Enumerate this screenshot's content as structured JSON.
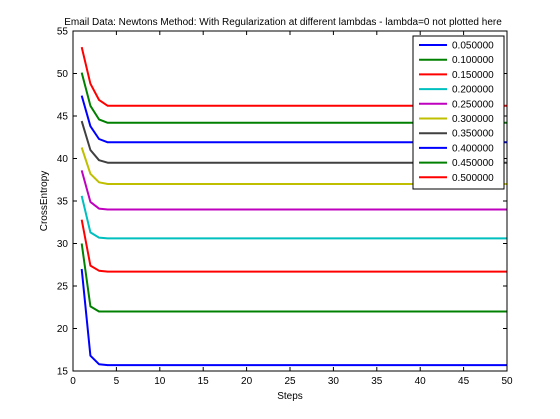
{
  "chart_data": {
    "type": "line",
    "title": "Email Data: Newtons Method: With Regularization at different lambdas - lambda=0 not plotted here",
    "xlabel": "Steps",
    "ylabel": "CrossEntropy",
    "xlim": [
      0,
      50
    ],
    "ylim": [
      15,
      55
    ],
    "xticks": [
      0,
      5,
      10,
      15,
      20,
      25,
      30,
      35,
      40,
      45,
      50
    ],
    "yticks": [
      15,
      20,
      25,
      30,
      35,
      40,
      45,
      50,
      55
    ],
    "grid": false,
    "legend_position": "top-right",
    "x": [
      1,
      2,
      3,
      4,
      5,
      10,
      20,
      30,
      40,
      50
    ],
    "series": [
      {
        "name": "0.050000",
        "color": "#0000ff",
        "values": [
          27.0,
          16.8,
          15.8,
          15.7,
          15.7,
          15.7,
          15.7,
          15.7,
          15.7,
          15.7
        ]
      },
      {
        "name": "0.100000",
        "color": "#008000",
        "values": [
          30.0,
          22.6,
          22.0,
          22.0,
          22.0,
          22.0,
          22.0,
          22.0,
          22.0,
          22.0
        ]
      },
      {
        "name": "0.150000",
        "color": "#ff0000",
        "values": [
          32.8,
          27.4,
          26.8,
          26.7,
          26.7,
          26.7,
          26.7,
          26.7,
          26.7,
          26.7
        ]
      },
      {
        "name": "0.200000",
        "color": "#00bfbf",
        "values": [
          35.6,
          31.3,
          30.7,
          30.6,
          30.6,
          30.6,
          30.6,
          30.6,
          30.6,
          30.6
        ]
      },
      {
        "name": "0.250000",
        "color": "#bf00bf",
        "values": [
          38.6,
          34.9,
          34.1,
          34.0,
          34.0,
          34.0,
          34.0,
          34.0,
          34.0,
          34.0
        ]
      },
      {
        "name": "0.300000",
        "color": "#bfbf00",
        "values": [
          41.3,
          38.2,
          37.2,
          37.0,
          37.0,
          37.0,
          37.0,
          37.0,
          37.0,
          37.0
        ]
      },
      {
        "name": "0.350000",
        "color": "#404040",
        "values": [
          44.4,
          41.0,
          39.8,
          39.5,
          39.5,
          39.5,
          39.5,
          39.5,
          39.5,
          39.5
        ]
      },
      {
        "name": "0.400000",
        "color": "#0000ff",
        "values": [
          47.4,
          43.8,
          42.3,
          41.9,
          41.9,
          41.9,
          41.9,
          41.9,
          41.9,
          41.9
        ]
      },
      {
        "name": "0.450000",
        "color": "#008000",
        "values": [
          50.1,
          46.2,
          44.6,
          44.2,
          44.2,
          44.2,
          44.2,
          44.2,
          44.2,
          44.2
        ]
      },
      {
        "name": "0.500000",
        "color": "#ff0000",
        "values": [
          53.1,
          48.8,
          46.9,
          46.2,
          46.2,
          46.2,
          46.2,
          46.2,
          46.2,
          46.2
        ]
      }
    ]
  }
}
